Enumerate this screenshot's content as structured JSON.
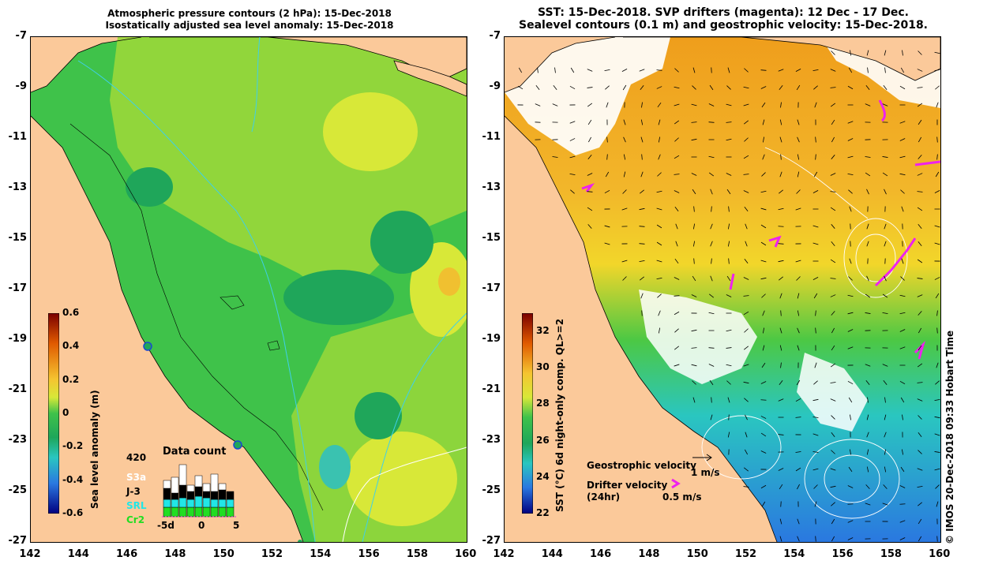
{
  "left_panel": {
    "title_line1": "Atmospheric pressure contours (2 hPa): 15-Dec-2018",
    "title_line2": "Isostatically adjusted sea level anomaly: 15-Dec-2018",
    "colorbar_label": "Sea level anomaly (m)",
    "colorbar_ticks": [
      "0.6",
      "0.4",
      "0.2",
      "0",
      "-0.2",
      "-0.4",
      "-0.6"
    ],
    "data_count": {
      "title": "Data count",
      "max_label": "420",
      "x_ticks": [
        "-5d",
        "0",
        "5"
      ],
      "legend": [
        {
          "label": "S3a",
          "color": "#ffffff"
        },
        {
          "label": "J-3",
          "color": "#000000"
        },
        {
          "label": "SRL",
          "color": "#22e6e6"
        },
        {
          "label": "Cr2",
          "color": "#22dd22"
        }
      ]
    }
  },
  "right_panel": {
    "title_line1": "SST: 15-Dec-2018. SVP drifters (magenta): 12 Dec - 17 Dec.",
    "title_line2": "Sealevel contours (0.1 m) and geostrophic velocity: 15-Dec-2018.",
    "colorbar_label": "SST (°C) 6d night-only comp. QL>=2",
    "colorbar_ticks": [
      "32",
      "30",
      "28",
      "26",
      "24",
      "22"
    ],
    "geostrophic_label": "Geostrophic velocity",
    "geostrophic_scale": "1 m/s",
    "drifter_label": "Drifter velocity",
    "drifter_sub": "(24hr)",
    "drifter_scale": "0.5 m/s",
    "credit": "© IMOS 20-Dec-2018 09:33 Hobart Time"
  },
  "axes": {
    "y_ticks": [
      "-7",
      "-9",
      "-11",
      "-13",
      "-15",
      "-17",
      "-19",
      "-21",
      "-23",
      "-25",
      "-27"
    ],
    "x_ticks": [
      "142",
      "144",
      "146",
      "148",
      "150",
      "152",
      "154",
      "156",
      "158",
      "160"
    ]
  },
  "colors": {
    "land": "#fbc99a",
    "sla_green": "#3fc24a",
    "sla_lightgreen": "#9ad83a",
    "sla_yellow": "#d8e838",
    "sst_orange": "#ef9e1c",
    "sst_yellow": "#f2d62a",
    "sst_green": "#4cc844",
    "sst_cyan": "#2ac6c0",
    "sst_blue": "#2a78e0",
    "drifter": "#ee22ee"
  }
}
